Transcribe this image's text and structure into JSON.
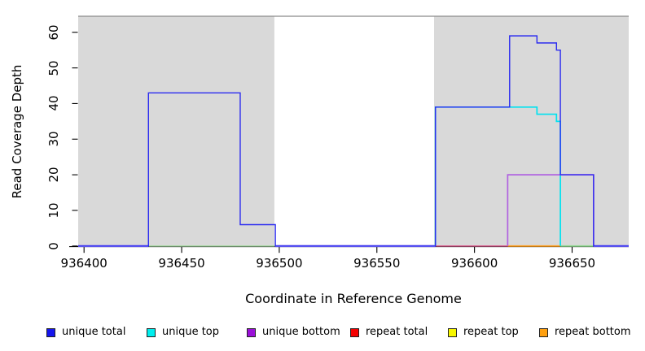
{
  "figure": {
    "background": "#ffffff",
    "shaded_region_color": "#d9d9d9",
    "box_top_line_color": "#8a8a8a",
    "axis_color": "#000000"
  },
  "chart_data": {
    "type": "line",
    "subtype": "step-coverage",
    "title": "",
    "xlabel": "Coordinate in Reference Genome",
    "ylabel": "Read Coverage Depth",
    "xlim": [
      936397,
      936679
    ],
    "ylim": [
      0,
      64.5
    ],
    "grid": false,
    "legend_position": "bottom",
    "x_ticks": [
      936400,
      936450,
      936500,
      936550,
      936600,
      936650
    ],
    "x_tick_labels": [
      "936400",
      "936450",
      "936500",
      "936550",
      "936600",
      "936650"
    ],
    "y_ticks": [
      0,
      10,
      20,
      30,
      40,
      50,
      60
    ],
    "y_tick_labels": [
      "0",
      "10",
      "20",
      "30",
      "40",
      "50",
      "60"
    ],
    "shaded_regions": [
      {
        "from": 936397,
        "to": 936497.5
      },
      {
        "from": 936579.3,
        "to": 936679
      }
    ],
    "series": [
      {
        "name": "unique total",
        "color": "#2b2bf0",
        "width": 1.4,
        "points": [
          [
            936397,
            0
          ],
          [
            936433,
            0
          ],
          [
            936433,
            43
          ],
          [
            936480,
            43
          ],
          [
            936480,
            6
          ],
          [
            936498,
            6
          ],
          [
            936498,
            0
          ],
          [
            936580,
            0
          ],
          [
            936580,
            39
          ],
          [
            936618,
            39
          ],
          [
            936618,
            59
          ],
          [
            936632,
            59
          ],
          [
            936632,
            57
          ],
          [
            936642,
            57
          ],
          [
            936642,
            55
          ],
          [
            936644,
            55
          ],
          [
            936644,
            20
          ],
          [
            936661,
            20
          ],
          [
            936661,
            0
          ],
          [
            936679,
            0
          ]
        ]
      },
      {
        "name": "unique top",
        "color": "#00e2ef",
        "width": 1.7,
        "points": [
          [
            936580,
            0
          ],
          [
            936580,
            39
          ],
          [
            936632,
            39
          ],
          [
            936632,
            37
          ],
          [
            936642,
            37
          ],
          [
            936642,
            35
          ],
          [
            936644,
            35
          ],
          [
            936644,
            0
          ]
        ]
      },
      {
        "name": "unique bottom",
        "color": "#b062e0",
        "width": 1.7,
        "points": [
          [
            936617,
            0
          ],
          [
            936617,
            20
          ],
          [
            936661,
            20
          ],
          [
            936661,
            0
          ]
        ]
      },
      {
        "name": "repeat total",
        "color": "#ee0000",
        "width": 1.3,
        "points": [
          [
            936580,
            0
          ],
          [
            936618,
            0
          ]
        ]
      },
      {
        "name": "repeat top",
        "color": "#f7f700",
        "width": 1.3,
        "points": [
          [
            936433,
            0
          ],
          [
            936498,
            0
          ]
        ]
      },
      {
        "name": "repeat bottom",
        "color": "#ffa010",
        "width": 1.3,
        "points": [
          [
            936618,
            0
          ],
          [
            936644,
            0
          ]
        ]
      }
    ],
    "baseline_blend_segments": {
      "under": [
        {
          "from": 936397,
          "to": 936433,
          "color": "#9181ee",
          "width": 2.6
        },
        {
          "from": 936498,
          "to": 936580,
          "color": "#9181ee",
          "width": 2.6
        },
        {
          "from": 936661,
          "to": 936679,
          "color": "#9181ee",
          "width": 2.6
        }
      ],
      "over": [
        {
          "from": 936433,
          "to": 936498,
          "color": "#a6d7a2",
          "width": 1.7
        },
        {
          "from": 936580,
          "to": 936617,
          "color": "#d9608f",
          "width": 1.7
        },
        {
          "from": 936617,
          "to": 936644,
          "color": "#ffa020",
          "width": 1.8
        },
        {
          "from": 936644,
          "to": 936661,
          "color": "#90d890",
          "width": 1.8
        }
      ]
    }
  },
  "axes": {
    "x_title": "Coordinate in Reference Genome",
    "y_title": "Read Coverage Depth"
  },
  "legend": {
    "items": [
      {
        "label": "unique total",
        "color": "#1515ee"
      },
      {
        "label": "unique top",
        "color": "#00eeee"
      },
      {
        "label": "unique bottom",
        "color": "#9a10d8"
      },
      {
        "label": "repeat total",
        "color": "#f50000"
      },
      {
        "label": "repeat top",
        "color": "#f7f700"
      },
      {
        "label": "repeat bottom",
        "color": "#ffa010"
      }
    ]
  }
}
